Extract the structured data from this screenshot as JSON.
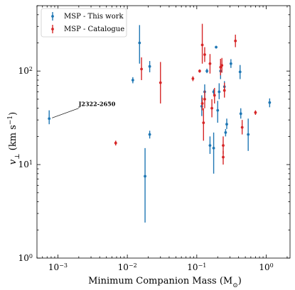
{
  "chart_data": {
    "type": "scatter",
    "title": "",
    "xlabel": "Minimum Companion Mass (M",
    "xlabel_sub": "⊙",
    "xlabel_close": ")",
    "ylabel": "v",
    "ylabel_sub": "⊥",
    "ylabel_rest": " (km s",
    "ylabel_sup": "−1",
    "ylabel_close": ")",
    "x_scale": "log",
    "y_scale": "log",
    "xlim": [
      0.0005,
      2.2
    ],
    "ylim": [
      1,
      500
    ],
    "grid": false,
    "legend_position": "top-left",
    "x_ticks": [
      {
        "value": 0.001,
        "label_base": "10",
        "label_exp": "−3"
      },
      {
        "value": 0.01,
        "label_base": "10",
        "label_exp": "−2"
      },
      {
        "value": 0.1,
        "label_base": "10",
        "label_exp": "−1"
      },
      {
        "value": 1,
        "label_base": "10",
        "label_exp": "0"
      }
    ],
    "y_ticks": [
      {
        "value": 1,
        "label_base": "10",
        "label_exp": "0"
      },
      {
        "value": 10,
        "label_base": "10",
        "label_exp": "1"
      },
      {
        "value": 100,
        "label_base": "10",
        "label_exp": "2"
      }
    ],
    "series": [
      {
        "name": "MSP - This work",
        "color": "#1f77b4",
        "points": [
          {
            "x": 0.00075,
            "y": 31,
            "ylo": 27,
            "yhi": 38
          },
          {
            "x": 0.012,
            "y": 80,
            "ylo": 74,
            "yhi": 86
          },
          {
            "x": 0.015,
            "y": 200,
            "ylo": 120,
            "yhi": 310
          },
          {
            "x": 0.018,
            "y": 7.5,
            "ylo": 2.4,
            "yhi": 15
          },
          {
            "x": 0.021,
            "y": 21,
            "ylo": 19,
            "yhi": 23
          },
          {
            "x": 0.021,
            "y": 112,
            "ylo": 97,
            "yhi": 128
          },
          {
            "x": 0.118,
            "y": 42,
            "ylo": 33,
            "yhi": 55
          },
          {
            "x": 0.13,
            "y": 60,
            "ylo": 50,
            "yhi": 72
          },
          {
            "x": 0.14,
            "y": 100,
            "ylo": 95,
            "yhi": 106
          },
          {
            "x": 0.155,
            "y": 16,
            "ylo": 13,
            "yhi": 20
          },
          {
            "x": 0.175,
            "y": 60,
            "ylo": 56,
            "yhi": 64
          },
          {
            "x": 0.175,
            "y": 15,
            "ylo": 8,
            "yhi": 22
          },
          {
            "x": 0.19,
            "y": 180,
            "ylo": 174,
            "yhi": 186
          },
          {
            "x": 0.2,
            "y": 38,
            "ylo": 28,
            "yhi": 48
          },
          {
            "x": 0.21,
            "y": 60,
            "ylo": 50,
            "yhi": 74
          },
          {
            "x": 0.22,
            "y": 100,
            "ylo": 82,
            "yhi": 122
          },
          {
            "x": 0.25,
            "y": 68,
            "ylo": 60,
            "yhi": 78
          },
          {
            "x": 0.26,
            "y": 22,
            "ylo": 20,
            "yhi": 24
          },
          {
            "x": 0.27,
            "y": 27,
            "ylo": 24,
            "yhi": 31
          },
          {
            "x": 0.31,
            "y": 120,
            "ylo": 108,
            "yhi": 134
          },
          {
            "x": 0.42,
            "y": 98,
            "ylo": 82,
            "yhi": 116
          },
          {
            "x": 0.43,
            "y": 35,
            "ylo": 31,
            "yhi": 40
          },
          {
            "x": 0.55,
            "y": 21,
            "ylo": 14,
            "yhi": 31
          },
          {
            "x": 1.12,
            "y": 46,
            "ylo": 41,
            "yhi": 51
          }
        ]
      },
      {
        "name": "MSP - Catalogue",
        "color": "#d62728",
        "points": [
          {
            "x": 0.0068,
            "y": 17,
            "ylo": 16,
            "yhi": 18
          },
          {
            "x": 0.016,
            "y": 105,
            "ylo": 80,
            "yhi": 140
          },
          {
            "x": 0.03,
            "y": 75,
            "ylo": 45,
            "yhi": 125
          },
          {
            "x": 0.088,
            "y": 83,
            "ylo": 78,
            "yhi": 88
          },
          {
            "x": 0.11,
            "y": 100,
            "ylo": 96,
            "yhi": 104
          },
          {
            "x": 0.12,
            "y": 190,
            "ylo": 120,
            "yhi": 320
          },
          {
            "x": 0.12,
            "y": 45,
            "ylo": 38,
            "yhi": 52
          },
          {
            "x": 0.125,
            "y": 28,
            "ylo": 18,
            "yhi": 40
          },
          {
            "x": 0.13,
            "y": 150,
            "ylo": 125,
            "yhi": 180
          },
          {
            "x": 0.13,
            "y": 50,
            "ylo": 40,
            "yhi": 62
          },
          {
            "x": 0.155,
            "y": 120,
            "ylo": 94,
            "yhi": 152
          },
          {
            "x": 0.165,
            "y": 40,
            "ylo": 32,
            "yhi": 50
          },
          {
            "x": 0.18,
            "y": 55,
            "ylo": 45,
            "yhi": 66
          },
          {
            "x": 0.22,
            "y": 110,
            "ylo": 90,
            "yhi": 135
          },
          {
            "x": 0.23,
            "y": 115,
            "ylo": 96,
            "yhi": 138
          },
          {
            "x": 0.24,
            "y": 16,
            "ylo": 13,
            "yhi": 20
          },
          {
            "x": 0.24,
            "y": 12,
            "ylo": 10,
            "yhi": 14
          },
          {
            "x": 0.25,
            "y": 62,
            "ylo": 52,
            "yhi": 75
          },
          {
            "x": 0.36,
            "y": 210,
            "ylo": 180,
            "yhi": 245
          },
          {
            "x": 0.45,
            "y": 25,
            "ylo": 21,
            "yhi": 30
          },
          {
            "x": 0.7,
            "y": 36,
            "ylo": 34,
            "yhi": 38
          }
        ]
      }
    ],
    "annotations": [
      {
        "text": "J2322-2650",
        "x": 0.00075,
        "y": 31,
        "text_x": 0.0019,
        "text_y": 40
      }
    ]
  }
}
